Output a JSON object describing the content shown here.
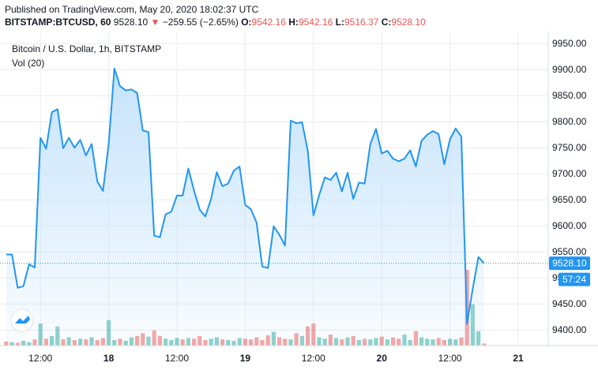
{
  "header": {
    "published": "Published on TradingView.com, May 20, 2020 18:02:37 UTC",
    "symbol": "BITSTAMP:BTCUSD, 60",
    "last": "9528.10",
    "arrow": "▼",
    "change": "−259.55 (−2.65%)",
    "o_label": "O:",
    "o_value": "9542.16",
    "h_label": "H:",
    "h_value": "9542.16",
    "l_label": "L:",
    "l_value": "9516.37",
    "c_label": "C:",
    "c_value": "9528.10"
  },
  "legend": {
    "series_title": "Bitcoin / U.S. Dollar, 1h, BITSTAMP",
    "volume_title": "Vol (20)"
  },
  "badges": {
    "price": "9528.10",
    "countdown": "57:24"
  },
  "colors": {
    "line": "#2196f3",
    "area_top": "#bfe0fb",
    "vol_up": "#26a69a",
    "vol_down": "#ef5350",
    "badge": "#2196f3",
    "grid": "#e8ecf1"
  },
  "chart_data": {
    "type": "area",
    "title": "Bitcoin / U.S. Dollar, 1h, BITSTAMP",
    "y_axis": {
      "range": [
        9370,
        9970
      ],
      "ticks": [
        9950,
        9900,
        9850,
        9800,
        9750,
        9700,
        9650,
        9600,
        9550,
        9500,
        9450,
        9400
      ],
      "tick_labels": [
        "9950.00",
        "9900.00",
        "9850.00",
        "9800.00",
        "9750.00",
        "9700.00",
        "9650.00",
        "9600.00",
        "9550.00",
        "9500.00",
        "9450.00",
        "9400.00"
      ]
    },
    "x_axis": {
      "tick_labels": [
        "12:00",
        "18",
        "12:00",
        "19",
        "12:00",
        "20",
        "12:00",
        "21"
      ],
      "tick_index": [
        6,
        18,
        30,
        42,
        54,
        66,
        78,
        90
      ]
    },
    "grid": true,
    "series": [
      {
        "name": "BTCUSD",
        "values": [
          9545,
          9545,
          9481,
          9484,
          9526,
          9520,
          9769,
          9748,
          9818,
          9824,
          9749,
          9769,
          9750,
          9765,
          9735,
          9757,
          9685,
          9667,
          9758,
          9902,
          9868,
          9860,
          9862,
          9855,
          9783,
          9780,
          9581,
          9578,
          9622,
          9627,
          9658,
          9658,
          9710,
          9668,
          9631,
          9618,
          9652,
          9703,
          9676,
          9681,
          9706,
          9714,
          9640,
          9632,
          9606,
          9522,
          9519,
          9599,
          9583,
          9562,
          9802,
          9797,
          9799,
          9744,
          9620,
          9659,
          9693,
          9688,
          9702,
          9666,
          9702,
          9652,
          9683,
          9681,
          9757,
          9786,
          9739,
          9744,
          9729,
          9724,
          9729,
          9745,
          9714,
          9763,
          9775,
          9782,
          9776,
          9718,
          9766,
          9787,
          9771,
          9412,
          9479,
          9540,
          9528
        ]
      }
    ],
    "volume": {
      "values": [
        6,
        5,
        4,
        7,
        5,
        9,
        32,
        10,
        14,
        28,
        9,
        12,
        8,
        10,
        9,
        12,
        8,
        11,
        37,
        8,
        10,
        7,
        12,
        14,
        18,
        13,
        22,
        14,
        10,
        8,
        11,
        9,
        11,
        10,
        14,
        8,
        10,
        12,
        9,
        8,
        7,
        11,
        10,
        9,
        12,
        8,
        15,
        20,
        12,
        10,
        9,
        18,
        14,
        28,
        32,
        12,
        10,
        16,
        11,
        9,
        12,
        14,
        8,
        10,
        9,
        11,
        13,
        9,
        12,
        10,
        16,
        8,
        21,
        12,
        10,
        9,
        11,
        8,
        10,
        9,
        12,
        110,
        60,
        21,
        3
      ],
      "up": [
        0,
        1,
        0,
        1,
        1,
        0,
        1,
        0,
        1,
        1,
        0,
        1,
        0,
        1,
        0,
        1,
        0,
        0,
        1,
        1,
        0,
        1,
        1,
        0,
        0,
        1,
        0,
        0,
        1,
        1,
        1,
        0,
        1,
        0,
        0,
        0,
        1,
        1,
        0,
        1,
        1,
        1,
        0,
        0,
        0,
        0,
        0,
        1,
        0,
        0,
        1,
        0,
        1,
        0,
        0,
        1,
        1,
        0,
        1,
        0,
        1,
        0,
        1,
        0,
        1,
        1,
        0,
        1,
        0,
        0,
        1,
        1,
        0,
        1,
        1,
        1,
        0,
        0,
        1,
        1,
        0,
        0,
        1,
        1,
        0
      ]
    },
    "last_price": 9528.1
  }
}
